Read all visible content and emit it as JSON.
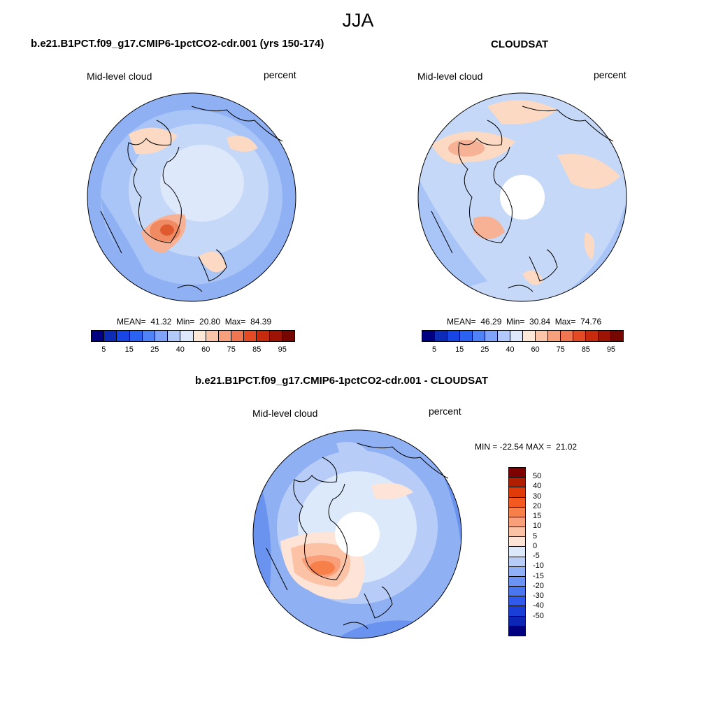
{
  "season": "JJA",
  "panels": [
    {
      "title": "b.e21.B1PCT.f09_g17.CMIP6-1pctCO2-cdr.001 (yrs 150-174)",
      "left_label": "Mid-level cloud",
      "right_label": "percent",
      "stats": "MEAN=  41.32  Min=  20.80  Max=  84.39"
    },
    {
      "title": "CLOUDSAT",
      "left_label": "Mid-level cloud",
      "right_label": "percent",
      "stats": "MEAN=  46.29  Min=  30.84  Max=  74.76"
    }
  ],
  "colorbar": {
    "colors": [
      "#000080",
      "#0c2bb6",
      "#1846e4",
      "#2b62f2",
      "#4f82f6",
      "#7ea3f8",
      "#b3c9fa",
      "#dde9fb",
      "#fde8d8",
      "#fbc5aa",
      "#f6a07d",
      "#ef7650",
      "#e44b25",
      "#c72a0c",
      "#9e1404",
      "#760600"
    ],
    "labels": [
      "5",
      "15",
      "25",
      "40",
      "60",
      "75",
      "85",
      "95"
    ]
  },
  "diff": {
    "title": "b.e21.B1PCT.f09_g17.CMIP6-1pctCO2-cdr.001 - CLOUDSAT",
    "left_label": "Mid-level cloud",
    "right_label": "percent",
    "stats": "MIN = -22.54 MAX =  21.02",
    "colorbar_colors": [
      "#7f0000",
      "#b01e00",
      "#e03a08",
      "#f45a20",
      "#f77f4a",
      "#f9a07a",
      "#fbc2a6",
      "#fde4d6",
      "#dce9fb",
      "#b7cdf8",
      "#8fb0f6",
      "#6a93f4",
      "#4a76f0",
      "#2f5aec",
      "#1a3fd8",
      "#0c26b6",
      "#000080"
    ],
    "colorbar_labels": [
      "50",
      "40",
      "30",
      "20",
      "15",
      "10",
      "5",
      "0",
      "-5",
      "-10",
      "-15",
      "-20",
      "-30",
      "-40",
      "-50"
    ]
  }
}
